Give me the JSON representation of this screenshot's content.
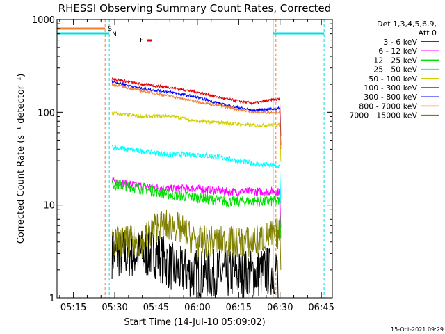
{
  "chart_data": {
    "type": "line",
    "title": "RHESSI Observing Summary Count Rates, Corrected",
    "xlabel": "Start Time (14-Jul-10 05:09:02)",
    "ylabel": "Corrected Count Rate (s⁻¹ detector⁻¹)",
    "y_scale": "log",
    "ylim": [
      1,
      1000
    ],
    "xlim": [
      "05:09:02",
      "06:49:00"
    ],
    "x_ticks": [
      "05:15",
      "05:30",
      "05:45",
      "06:00",
      "06:15",
      "06:30",
      "06:45"
    ],
    "y_ticks": [
      "1",
      "10",
      "100",
      "1000"
    ],
    "legend_header": [
      "Det 1,3,4,5,6,9,",
      "Att 0"
    ],
    "legend_position": "right",
    "footer_date": "15-Oct-2021 09:29",
    "markers": {
      "s_label": "S",
      "n_label": "N",
      "f_label": "F"
    },
    "event_lines": [
      {
        "kind": "saa",
        "time": "05:26:30",
        "color": "#f08030"
      },
      {
        "kind": "night",
        "time": "05:28:00",
        "color": "#00e0e0"
      },
      {
        "kind": "day",
        "time": "06:27:30",
        "color": "#00e0e0"
      },
      {
        "kind": "saa",
        "time": "06:28:30",
        "color": "#f08030"
      },
      {
        "kind": "night",
        "time": "06:46:00",
        "color": "#00e0e0"
      }
    ],
    "series": [
      {
        "name": "3 - 6 keV",
        "color": "#000000",
        "points": [
          [
            "05:29",
            3
          ],
          [
            "05:45",
            3
          ],
          [
            "05:52",
            2
          ],
          [
            "06:00",
            1.8
          ],
          [
            "06:10",
            1.8
          ],
          [
            "06:20",
            1.8
          ],
          [
            "06:29",
            2
          ]
        ]
      },
      {
        "name": "6 - 12 keV",
        "color": "#ff00ff",
        "points": [
          [
            "05:29",
            18
          ],
          [
            "05:40",
            16
          ],
          [
            "05:50",
            15
          ],
          [
            "06:00",
            15
          ],
          [
            "06:10",
            14
          ],
          [
            "06:20",
            14
          ],
          [
            "06:30",
            14
          ]
        ]
      },
      {
        "name": "12 - 25 keV",
        "color": "#00e000",
        "points": [
          [
            "05:29",
            17
          ],
          [
            "05:40",
            15
          ],
          [
            "05:50",
            13
          ],
          [
            "06:00",
            12
          ],
          [
            "06:10",
            11
          ],
          [
            "06:20",
            11
          ],
          [
            "06:30",
            11
          ]
        ]
      },
      {
        "name": "25 - 50 keV",
        "color": "#00ffff",
        "points": [
          [
            "05:29",
            42
          ],
          [
            "05:40",
            38
          ],
          [
            "05:50",
            35
          ],
          [
            "06:00",
            35
          ],
          [
            "06:10",
            32
          ],
          [
            "06:20",
            28
          ],
          [
            "06:30",
            26
          ]
        ]
      },
      {
        "name": "50 - 100 keV",
        "color": "#d0d000",
        "points": [
          [
            "05:29",
            98
          ],
          [
            "05:40",
            90
          ],
          [
            "05:50",
            92
          ],
          [
            "06:00",
            80
          ],
          [
            "06:10",
            77
          ],
          [
            "06:20",
            72
          ],
          [
            "06:30",
            73
          ]
        ]
      },
      {
        "name": "100 - 300 keV",
        "color": "#e00000",
        "points": [
          [
            "05:29",
            230
          ],
          [
            "05:40",
            200
          ],
          [
            "05:50",
            185
          ],
          [
            "06:00",
            165
          ],
          [
            "06:10",
            140
          ],
          [
            "06:20",
            125
          ],
          [
            "06:30",
            140
          ]
        ]
      },
      {
        "name": "300 - 800 keV",
        "color": "#0000ff",
        "points": [
          [
            "05:29",
            215
          ],
          [
            "05:40",
            180
          ],
          [
            "05:50",
            165
          ],
          [
            "06:00",
            145
          ],
          [
            "06:10",
            120
          ],
          [
            "06:20",
            105
          ],
          [
            "06:30",
            110
          ]
        ]
      },
      {
        "name": "800 - 7000 keV",
        "color": "#f08030",
        "points": [
          [
            "05:29",
            200
          ],
          [
            "05:40",
            170
          ],
          [
            "05:50",
            150
          ],
          [
            "06:00",
            130
          ],
          [
            "06:10",
            115
          ],
          [
            "06:20",
            100
          ],
          [
            "06:30",
            100
          ]
        ]
      },
      {
        "name": "7000 - 15000 keV",
        "color": "#808000",
        "points": [
          [
            "05:29",
            4
          ],
          [
            "05:40",
            4
          ],
          [
            "05:45",
            6
          ],
          [
            "05:52",
            6
          ],
          [
            "06:00",
            4
          ],
          [
            "06:10",
            4
          ],
          [
            "06:20",
            4
          ],
          [
            "06:30",
            5
          ]
        ]
      }
    ]
  }
}
